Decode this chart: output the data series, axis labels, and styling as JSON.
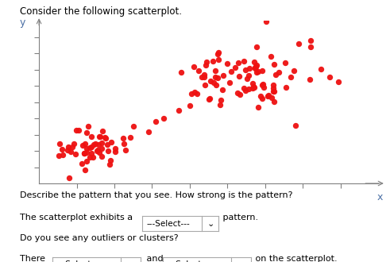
{
  "title": "Consider the following scatterplot.",
  "xlabel": "x",
  "ylabel": "y",
  "dot_color": "#ee1111",
  "dot_size": 28,
  "dot_alpha": 0.95,
  "background_color": "#ffffff",
  "cluster1_x_mean": 1.5,
  "cluster1_x_std": 0.5,
  "cluster1_y_mean": 2.2,
  "cluster1_y_std": 0.7,
  "cluster1_n": 55,
  "cluster2_x_mean": 5.5,
  "cluster2_x_std": 0.9,
  "cluster2_y_mean": 6.5,
  "cluster2_y_std": 0.9,
  "cluster2_n": 85,
  "scatter_x": [
    2.5,
    2.9,
    3.3,
    3.7,
    4.2,
    4.5,
    4.0,
    3.1
  ],
  "scatter_y": [
    3.5,
    3.2,
    4.0,
    4.5,
    5.5,
    5.2,
    4.8,
    3.8
  ],
  "outlier_x": [
    7.2
  ],
  "outlier_y": [
    8.8
  ],
  "xlim": [
    0,
    9
  ],
  "ylim": [
    0,
    10
  ],
  "tick_positions_x": [
    1,
    2,
    3,
    4,
    5,
    6,
    7,
    8
  ],
  "tick_positions_y": [
    1,
    2,
    3,
    4,
    5,
    6,
    7,
    8,
    9
  ]
}
